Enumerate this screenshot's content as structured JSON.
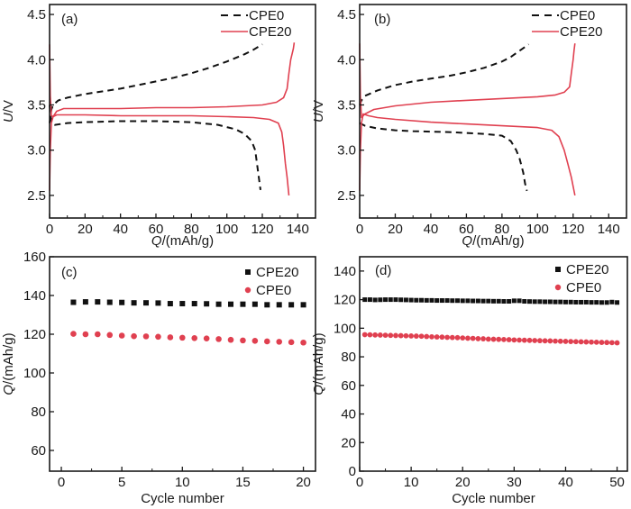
{
  "chart_data": [
    {
      "panel": "(a)",
      "type": "line",
      "xlabel_italic": "Q",
      "xlabel_rest": "/(mAh/g)",
      "ylabel_italic": "U",
      "ylabel_rest": "/V",
      "xlim": [
        0,
        150
      ],
      "ylim": [
        2.25,
        4.61
      ],
      "xticks": [
        0,
        20,
        40,
        60,
        80,
        100,
        120,
        140
      ],
      "yticks": [
        2.5,
        3.0,
        3.5,
        4.0,
        4.5
      ],
      "ytick_labels": [
        "2.5",
        "3.0",
        "3.5",
        "4.0",
        "4.5"
      ],
      "legend": {
        "placement": "top-right",
        "entries": [
          {
            "name": "CPE0",
            "style": "dashed"
          },
          {
            "name": "CPE20",
            "style": "solid"
          }
        ]
      },
      "series": [
        {
          "name": "CPE0",
          "style": "dashed",
          "color": "#111111",
          "segment": "charge",
          "points": [
            [
              0,
              3.3
            ],
            [
              1,
              3.45
            ],
            [
              2,
              3.5
            ],
            [
              5,
              3.55
            ],
            [
              10,
              3.58
            ],
            [
              20,
              3.62
            ],
            [
              30,
              3.65
            ],
            [
              40,
              3.68
            ],
            [
              50,
              3.72
            ],
            [
              60,
              3.76
            ],
            [
              70,
              3.8
            ],
            [
              80,
              3.85
            ],
            [
              90,
              3.91
            ],
            [
              100,
              3.98
            ],
            [
              110,
              4.06
            ],
            [
              115,
              4.11
            ],
            [
              120,
              4.17
            ]
          ]
        },
        {
          "name": "CPE0",
          "style": "dashed",
          "color": "#111111",
          "segment": "discharge",
          "points": [
            [
              0,
              3.5
            ],
            [
              1,
              3.3
            ],
            [
              3,
              3.28
            ],
            [
              10,
              3.3
            ],
            [
              20,
              3.31
            ],
            [
              40,
              3.32
            ],
            [
              60,
              3.32
            ],
            [
              80,
              3.31
            ],
            [
              95,
              3.28
            ],
            [
              105,
              3.23
            ],
            [
              110,
              3.18
            ],
            [
              114,
              3.1
            ],
            [
              116,
              3.0
            ],
            [
              117,
              2.85
            ],
            [
              118,
              2.7
            ],
            [
              119,
              2.56
            ]
          ]
        },
        {
          "name": "CPE20",
          "style": "solid",
          "color": "#e04050",
          "segment": "charge",
          "points": [
            [
              0,
              4.17
            ],
            [
              0.4,
              3.6
            ],
            [
              1,
              3.38
            ],
            [
              2,
              3.37
            ],
            [
              4,
              3.43
            ],
            [
              8,
              3.46
            ],
            [
              20,
              3.46
            ],
            [
              40,
              3.46
            ],
            [
              60,
              3.47
            ],
            [
              80,
              3.47
            ],
            [
              100,
              3.48
            ],
            [
              120,
              3.5
            ],
            [
              128,
              3.53
            ],
            [
              132,
              3.58
            ],
            [
              134,
              3.68
            ],
            [
              135,
              3.85
            ],
            [
              136,
              4.0
            ],
            [
              137.5,
              4.12
            ],
            [
              138,
              4.19
            ]
          ]
        },
        {
          "name": "CPE20",
          "style": "solid",
          "color": "#e04050",
          "segment": "discharge",
          "points": [
            [
              0,
              2.55
            ],
            [
              0.4,
              3.0
            ],
            [
              1,
              3.3
            ],
            [
              2,
              3.37
            ],
            [
              4,
              3.39
            ],
            [
              20,
              3.39
            ],
            [
              40,
              3.38
            ],
            [
              60,
              3.38
            ],
            [
              80,
              3.38
            ],
            [
              100,
              3.37
            ],
            [
              115,
              3.36
            ],
            [
              124,
              3.34
            ],
            [
              129,
              3.3
            ],
            [
              131,
              3.2
            ],
            [
              132,
              3.05
            ],
            [
              133,
              2.85
            ],
            [
              134,
              2.7
            ],
            [
              135,
              2.5
            ]
          ]
        }
      ]
    },
    {
      "panel": "(b)",
      "type": "line",
      "xlabel_italic": "Q",
      "xlabel_rest": "/(mAh/g)",
      "ylabel_italic": "U",
      "ylabel_rest": "/V",
      "xlim": [
        0,
        150
      ],
      "ylim": [
        2.25,
        4.61
      ],
      "xticks": [
        0,
        20,
        40,
        60,
        80,
        100,
        120,
        140
      ],
      "yticks": [
        2.5,
        3.0,
        3.5,
        4.0,
        4.5
      ],
      "ytick_labels": [
        "2.5",
        "3.0",
        "3.5",
        "4.0",
        "4.5"
      ],
      "legend": {
        "placement": "top-right",
        "entries": [
          {
            "name": "CPE0",
            "style": "dashed"
          },
          {
            "name": "CPE20",
            "style": "solid"
          }
        ]
      },
      "series": [
        {
          "name": "CPE0",
          "style": "dashed",
          "color": "#111111",
          "segment": "charge",
          "points": [
            [
              0,
              3.5
            ],
            [
              1,
              3.55
            ],
            [
              3,
              3.6
            ],
            [
              10,
              3.66
            ],
            [
              20,
              3.72
            ],
            [
              30,
              3.76
            ],
            [
              40,
              3.79
            ],
            [
              50,
              3.82
            ],
            [
              60,
              3.86
            ],
            [
              70,
              3.91
            ],
            [
              80,
              3.98
            ],
            [
              85,
              4.03
            ],
            [
              90,
              4.1
            ],
            [
              95,
              4.17
            ]
          ]
        },
        {
          "name": "CPE0",
          "style": "dashed",
          "color": "#111111",
          "segment": "discharge",
          "points": [
            [
              0,
              3.3
            ],
            [
              3,
              3.27
            ],
            [
              10,
              3.24
            ],
            [
              20,
              3.22
            ],
            [
              30,
              3.21
            ],
            [
              50,
              3.2
            ],
            [
              70,
              3.18
            ],
            [
              80,
              3.16
            ],
            [
              85,
              3.1
            ],
            [
              88,
              3.0
            ],
            [
              90,
              2.9
            ],
            [
              92,
              2.75
            ],
            [
              93,
              2.63
            ],
            [
              94,
              2.55
            ]
          ]
        },
        {
          "name": "CPE20",
          "style": "solid",
          "color": "#e04050",
          "segment": "charge",
          "points": [
            [
              0,
              4.18
            ],
            [
              0.4,
              3.6
            ],
            [
              1,
              3.36
            ],
            [
              3,
              3.4
            ],
            [
              8,
              3.45
            ],
            [
              20,
              3.49
            ],
            [
              40,
              3.53
            ],
            [
              60,
              3.55
            ],
            [
              80,
              3.57
            ],
            [
              100,
              3.59
            ],
            [
              110,
              3.61
            ],
            [
              115,
              3.64
            ],
            [
              118,
              3.7
            ],
            [
              119,
              3.85
            ],
            [
              120,
              4.0
            ],
            [
              120.5,
              4.1
            ],
            [
              121,
              4.18
            ]
          ]
        },
        {
          "name": "CPE20",
          "style": "solid",
          "color": "#e04050",
          "segment": "discharge",
          "points": [
            [
              0,
              2.55
            ],
            [
              0.4,
              3.0
            ],
            [
              1,
              3.3
            ],
            [
              2,
              3.4
            ],
            [
              5,
              3.38
            ],
            [
              10,
              3.36
            ],
            [
              20,
              3.34
            ],
            [
              40,
              3.31
            ],
            [
              60,
              3.29
            ],
            [
              80,
              3.27
            ],
            [
              100,
              3.25
            ],
            [
              108,
              3.22
            ],
            [
              112,
              3.15
            ],
            [
              115,
              3.0
            ],
            [
              117,
              2.85
            ],
            [
              119,
              2.7
            ],
            [
              121,
              2.5
            ]
          ]
        }
      ]
    },
    {
      "panel": "(c)",
      "type": "scatter",
      "xlabel": "Cycle number",
      "ylabel_italic": "Q",
      "ylabel_rest": "/(mAh/g)",
      "xlim": [
        -0.97,
        21
      ],
      "ylim": [
        49.3,
        160
      ],
      "xticks": [
        0,
        5,
        10,
        15,
        20
      ],
      "yticks": [
        60,
        80,
        100,
        120,
        140,
        160
      ],
      "legend": {
        "placement": "top-right",
        "entries": [
          {
            "name": "CPE20",
            "marker": "square"
          },
          {
            "name": "CPE0",
            "marker": "circle"
          }
        ]
      },
      "series": [
        {
          "name": "CPE20",
          "marker": "square",
          "color": "#111111",
          "x": [
            1,
            2,
            3,
            4,
            5,
            6,
            7,
            8,
            9,
            10,
            11,
            12,
            13,
            14,
            15,
            16,
            17,
            18,
            19,
            20
          ],
          "y": [
            136.5,
            136.7,
            136.7,
            136.5,
            136.4,
            136.2,
            136.2,
            136.1,
            135.8,
            135.8,
            135.8,
            135.7,
            135.5,
            135.5,
            135.5,
            135.5,
            135.2,
            135.2,
            135.2,
            135.2
          ]
        },
        {
          "name": "CPE0",
          "marker": "circle",
          "color": "#e04050",
          "x": [
            1,
            2,
            3,
            4,
            5,
            6,
            7,
            8,
            9,
            10,
            11,
            12,
            13,
            14,
            15,
            16,
            17,
            18,
            19,
            20
          ],
          "y": [
            120.2,
            120.0,
            120.0,
            119.6,
            119.3,
            119.0,
            118.9,
            118.7,
            118.4,
            118.2,
            118.0,
            117.8,
            117.5,
            117.1,
            116.8,
            116.6,
            116.3,
            116.1,
            115.9,
            115.7
          ]
        }
      ]
    },
    {
      "panel": "(d)",
      "type": "scatter",
      "xlabel": "Cycle number",
      "ylabel_italic": "Q",
      "ylabel_rest": "/(mAh/g)",
      "xlim": [
        0,
        52
      ],
      "ylim": [
        0,
        150
      ],
      "xticks": [
        0,
        10,
        20,
        30,
        40,
        50
      ],
      "yticks": [
        0,
        20,
        40,
        60,
        80,
        100,
        120,
        140
      ],
      "legend": {
        "placement": "top-right",
        "entries": [
          {
            "name": "CPE20",
            "marker": "square"
          },
          {
            "name": "CPE0",
            "marker": "circle"
          }
        ]
      },
      "series": [
        {
          "name": "CPE20",
          "marker": "square",
          "color": "#111111",
          "x": [
            1,
            2,
            3,
            4,
            5,
            6,
            7,
            8,
            9,
            10,
            11,
            12,
            13,
            14,
            15,
            16,
            17,
            18,
            19,
            20,
            21,
            22,
            23,
            24,
            25,
            26,
            27,
            28,
            29,
            30,
            31,
            32,
            33,
            34,
            35,
            36,
            37,
            38,
            39,
            40,
            41,
            42,
            43,
            44,
            45,
            46,
            47,
            48,
            49,
            50
          ],
          "y": [
            120.0,
            120.0,
            119.8,
            119.9,
            120.0,
            120.0,
            120.0,
            119.9,
            119.8,
            119.7,
            119.6,
            119.6,
            119.5,
            119.5,
            119.4,
            119.4,
            119.4,
            119.3,
            119.3,
            119.2,
            119.2,
            119.1,
            119.1,
            119.0,
            119.0,
            118.9,
            118.9,
            118.8,
            118.8,
            119.2,
            119.2,
            118.8,
            118.7,
            118.6,
            118.6,
            118.5,
            118.5,
            118.4,
            118.4,
            118.3,
            118.3,
            118.2,
            118.2,
            118.2,
            118.1,
            118.1,
            118.0,
            118.0,
            118.3,
            118.0
          ]
        },
        {
          "name": "CPE0",
          "marker": "circle",
          "color": "#e04050",
          "x": [
            1,
            2,
            3,
            4,
            5,
            6,
            7,
            8,
            9,
            10,
            11,
            12,
            13,
            14,
            15,
            16,
            17,
            18,
            19,
            20,
            21,
            22,
            23,
            24,
            25,
            26,
            27,
            28,
            29,
            30,
            31,
            32,
            33,
            34,
            35,
            36,
            37,
            38,
            39,
            40,
            41,
            42,
            43,
            44,
            45,
            46,
            47,
            48,
            49,
            50
          ],
          "y": [
            95.5,
            95.4,
            95.3,
            95.2,
            95.1,
            95.0,
            94.9,
            94.8,
            94.7,
            94.6,
            94.5,
            94.4,
            94.2,
            94.0,
            93.9,
            93.8,
            93.6,
            93.5,
            93.4,
            93.2,
            93.0,
            92.9,
            92.7,
            92.6,
            92.4,
            92.3,
            92.2,
            92.1,
            92.0,
            91.8,
            91.7,
            91.6,
            91.5,
            91.4,
            91.3,
            91.2,
            91.1,
            91.0,
            90.9,
            90.8,
            90.7,
            90.6,
            90.5,
            90.4,
            90.3,
            90.2,
            90.1,
            90.0,
            89.9,
            89.8
          ]
        }
      ]
    }
  ]
}
